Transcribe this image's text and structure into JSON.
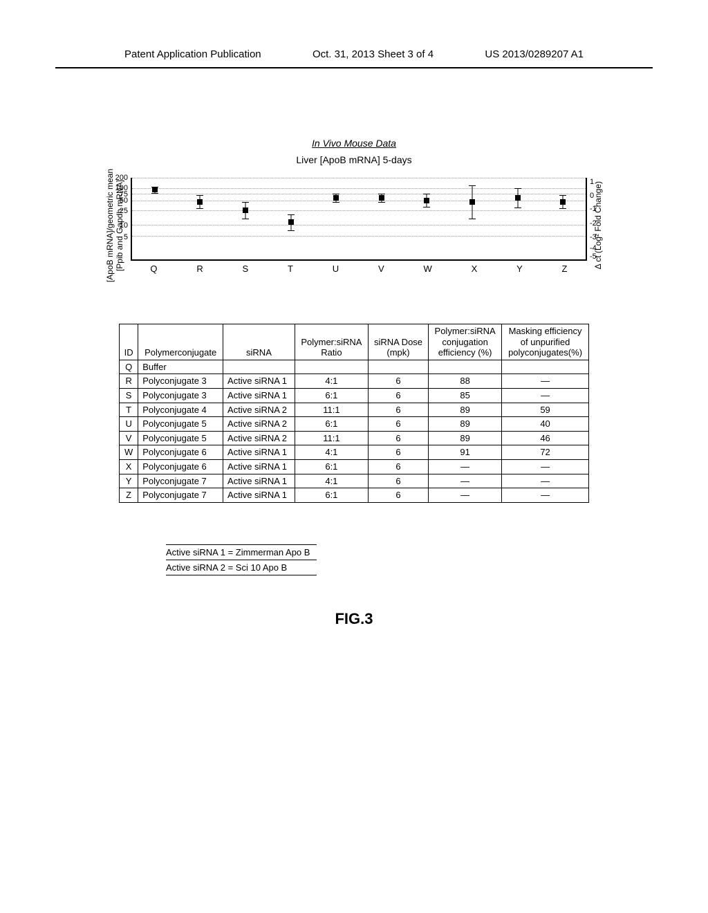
{
  "header": {
    "left": "Patent Application Publication",
    "center": "Oct. 31, 2013  Sheet 3 of 4",
    "right": "US 2013/0289207 A1"
  },
  "chart": {
    "main_title": "In Vivo Mouse Data",
    "subtitle": "Liver [ApoB mRNA] 5-days",
    "y_label_left": "[ApoB  mRNA]/geometric  mean\n[Ppib  and  Gapdh  mRNA]",
    "y_label_right": "Δ ct  (Log²  Fold  Change)",
    "y_ticks_left": [
      {
        "v": 200,
        "pos": 0
      },
      {
        "v": 100,
        "pos": 13
      },
      {
        "v": 75,
        "pos": 20
      },
      {
        "v": 50,
        "pos": 28
      },
      {
        "v": 25,
        "pos": 40
      },
      {
        "v": 10,
        "pos": 58
      },
      {
        "v": 5,
        "pos": 72
      }
    ],
    "y_ticks_right": [
      {
        "v": 1,
        "pos": 5
      },
      {
        "v": 0,
        "pos": 22
      },
      {
        "v": -1,
        "pos": 38
      },
      {
        "v": -2,
        "pos": 55
      },
      {
        "v": -3,
        "pos": 72
      },
      {
        "v": -4,
        "pos": 85
      },
      {
        "v": -5,
        "pos": 95
      }
    ],
    "gridlines": [
      0,
      13,
      20,
      28,
      40,
      58,
      72
    ],
    "x_categories": [
      "Q",
      "R",
      "S",
      "T",
      "U",
      "V",
      "W",
      "X",
      "Y",
      "Z"
    ],
    "points": [
      {
        "x": 5,
        "y": 15,
        "ebar": 4
      },
      {
        "x": 15,
        "y": 30,
        "ebar": 8
      },
      {
        "x": 25,
        "y": 40,
        "ebar": 10
      },
      {
        "x": 35,
        "y": 55,
        "ebar": 10
      },
      {
        "x": 45,
        "y": 25,
        "ebar": 5
      },
      {
        "x": 55,
        "y": 25,
        "ebar": 5
      },
      {
        "x": 65,
        "y": 28,
        "ebar": 8
      },
      {
        "x": 75,
        "y": 30,
        "ebar": 20
      },
      {
        "x": 85,
        "y": 25,
        "ebar": 12
      },
      {
        "x": 95,
        "y": 30,
        "ebar": 8
      }
    ]
  },
  "table": {
    "headers": [
      "ID",
      "Polymerconjugate",
      "siRNA",
      "Polymer:siRNA\nRatio",
      "siRNA Dose\n(mpk)",
      "Polymer:siRNA\nconjugation\nefficiency (%)",
      "Masking efficiency\nof unpurified\npolyconjugates(%)"
    ],
    "rows": [
      [
        "Q",
        "Buffer",
        "",
        "",
        "",
        "",
        ""
      ],
      [
        "R",
        "Polyconjugate 3",
        "Active siRNA 1",
        "4:1",
        "6",
        "88",
        "—"
      ],
      [
        "S",
        "Polyconjugate 3",
        "Active siRNA 1",
        "6:1",
        "6",
        "85",
        "—"
      ],
      [
        "T",
        "Polyconjugate 4",
        "Active siRNA 2",
        "11:1",
        "6",
        "89",
        "59"
      ],
      [
        "U",
        "Polyconjugate 5",
        "Active siRNA 2",
        "6:1",
        "6",
        "89",
        "40"
      ],
      [
        "V",
        "Polyconjugate 5",
        "Active siRNA 2",
        "11:1",
        "6",
        "89",
        "46"
      ],
      [
        "W",
        "Polyconjugate 6",
        "Active siRNA 1",
        "4:1",
        "6",
        "91",
        "72"
      ],
      [
        "X",
        "Polyconjugate 6",
        "Active siRNA 1",
        "6:1",
        "6",
        "—",
        "—"
      ],
      [
        "Y",
        "Polyconjugate 7",
        "Active siRNA 1",
        "4:1",
        "6",
        "—",
        "—"
      ],
      [
        "Z",
        "Polyconjugate 7",
        "Active siRNA 1",
        "6:1",
        "6",
        "—",
        "—"
      ]
    ]
  },
  "legend": {
    "r1": "Active siRNA 1 = Zimmerman Apo B",
    "r2": "Active siRNA 2 = Sci 10 Apo B"
  },
  "figure_label": "FIG.3"
}
